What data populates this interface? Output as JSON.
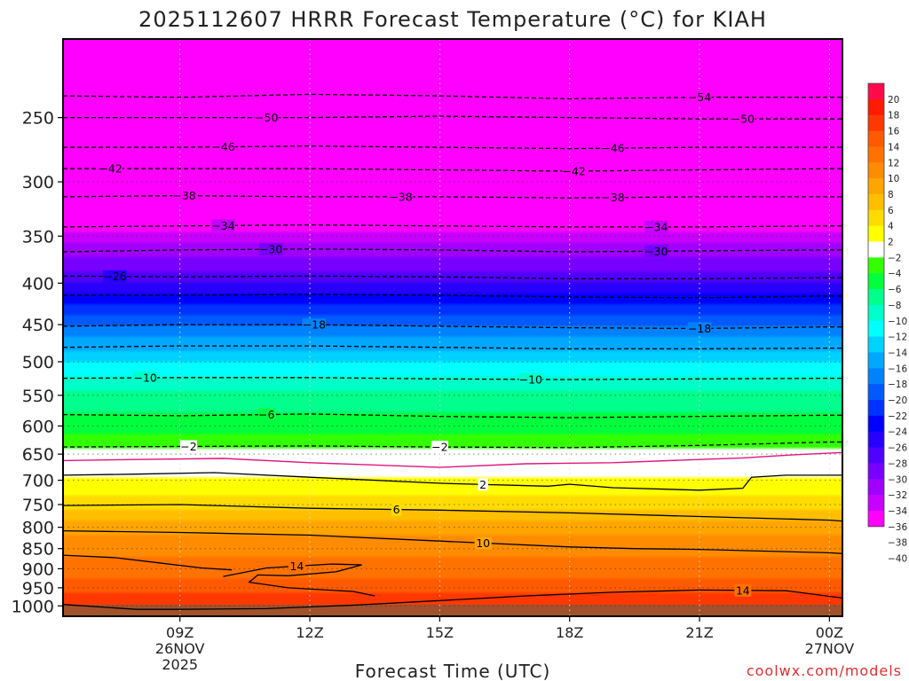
{
  "chart_data": {
    "type": "heatmap",
    "title": "2025112607 HRRR Forecast Temperature (°C) for KIAH",
    "xlabel": "Forecast Time (UTC)",
    "ylabel": "",
    "credit": "coolwx.com/models",
    "x_range_hours": [
      6.3,
      24.3
    ],
    "y_range_hpa": [
      1030,
      200
    ],
    "x_ticks": [
      {
        "hour": 9,
        "lines": [
          "09Z",
          "26NOV",
          "2025"
        ]
      },
      {
        "hour": 12,
        "lines": [
          "12Z"
        ]
      },
      {
        "hour": 15,
        "lines": [
          "15Z"
        ]
      },
      {
        "hour": 18,
        "lines": [
          "18Z"
        ]
      },
      {
        "hour": 21,
        "lines": [
          "21Z"
        ]
      },
      {
        "hour": 24,
        "lines": [
          "00Z",
          "27NOV"
        ]
      }
    ],
    "y_ticks": [
      250,
      300,
      350,
      400,
      450,
      500,
      550,
      600,
      650,
      700,
      750,
      800,
      850,
      900,
      950,
      1000
    ],
    "colorbar": {
      "labels": [
        "20",
        "18",
        "16",
        "14",
        "12",
        "10",
        "8",
        "6",
        "4",
        "2",
        "−2",
        "−4",
        "−6",
        "−8",
        "−10",
        "−12",
        "−14",
        "−16",
        "−18",
        "−20",
        "−22",
        "−24",
        "−26",
        "−28",
        "−30",
        "−32",
        "−34",
        "−36",
        "−38",
        "−40"
      ],
      "colors": [
        "#ff0a4a",
        "#ff1a00",
        "#ff3800",
        "#ff5a00",
        "#ff7200",
        "#ff8c00",
        "#ffa500",
        "#ffbe00",
        "#ffdc00",
        "#ffff00",
        "#ffffff",
        "#32ff00",
        "#00ff3c",
        "#00ff8c",
        "#00ffc8",
        "#00ffff",
        "#00d2ff",
        "#00a8ff",
        "#0082ff",
        "#005aff",
        "#0032ff",
        "#0000ff",
        "#2800ff",
        "#5000ff",
        "#7800ff",
        "#a000ff",
        "#c800ff",
        "#ff00ff"
      ],
      "bottom_color": "#ff00ff"
    },
    "profile": [
      {
        "p": 1020,
        "t": 21
      },
      {
        "p": 1000,
        "t": 18
      },
      {
        "p": 950,
        "t": 15
      },
      {
        "p": 900,
        "t": 13
      },
      {
        "p": 850,
        "t": 11.5
      },
      {
        "p": 800,
        "t": 9
      },
      {
        "p": 750,
        "t": 5
      },
      {
        "p": 700,
        "t": 2.5
      },
      {
        "p": 670,
        "t": 0
      },
      {
        "p": 650,
        "t": -1.5
      },
      {
        "p": 600,
        "t": -5
      },
      {
        "p": 550,
        "t": -7.5
      },
      {
        "p": 500,
        "t": -12
      },
      {
        "p": 450,
        "t": -18
      },
      {
        "p": 400,
        "t": -26
      },
      {
        "p": 350,
        "t": -33
      },
      {
        "p": 300,
        "t": -42
      },
      {
        "p": 250,
        "t": -50
      },
      {
        "p": 200,
        "t": -58
      }
    ],
    "isotherms": [
      {
        "temp": -54,
        "style": "dashed",
        "pts": [
          [
            6.3,
            235
          ],
          [
            9,
            236
          ],
          [
            12,
            234
          ],
          [
            15,
            235
          ],
          [
            18,
            237
          ],
          [
            21,
            236
          ],
          [
            24,
            236
          ],
          [
            24.3,
            236
          ]
        ],
        "labels": [
          {
            "text": "−54",
            "hour": 21
          }
        ]
      },
      {
        "temp": -50,
        "style": "dashed",
        "pts": [
          [
            6.3,
            250
          ],
          [
            9,
            250
          ],
          [
            12,
            250
          ],
          [
            15,
            249
          ],
          [
            18,
            250
          ],
          [
            21,
            251
          ],
          [
            24,
            251
          ],
          [
            24.3,
            251
          ]
        ],
        "labels": [
          {
            "text": "−50",
            "hour": 11
          },
          {
            "text": "−50",
            "hour": 22
          }
        ]
      },
      {
        "temp": -46,
        "style": "dashed",
        "pts": [
          [
            6.3,
            272
          ],
          [
            9,
            272
          ],
          [
            12,
            271
          ],
          [
            15,
            272
          ],
          [
            18,
            273
          ],
          [
            21,
            272
          ],
          [
            24,
            272
          ],
          [
            24.3,
            272
          ]
        ],
        "labels": [
          {
            "text": "−46",
            "hour": 10
          },
          {
            "text": "−46",
            "hour": 19
          }
        ]
      },
      {
        "temp": -42,
        "style": "dashed",
        "pts": [
          [
            6.3,
            289
          ],
          [
            9,
            289
          ],
          [
            12,
            289
          ],
          [
            15,
            290
          ],
          [
            18,
            291
          ],
          [
            21,
            290
          ],
          [
            24,
            289
          ],
          [
            24.3,
            289
          ]
        ],
        "labels": [
          {
            "text": "−42",
            "hour": 7.4
          },
          {
            "text": "−42",
            "hour": 18.1
          }
        ]
      },
      {
        "temp": -38,
        "style": "dashed",
        "pts": [
          [
            6.3,
            313
          ],
          [
            9,
            312
          ],
          [
            12,
            313
          ],
          [
            15,
            313
          ],
          [
            18,
            314
          ],
          [
            21,
            313
          ],
          [
            24,
            313
          ],
          [
            24.3,
            313
          ]
        ],
        "labels": [
          {
            "text": "−38",
            "hour": 9.1
          },
          {
            "text": "−38",
            "hour": 14.1
          },
          {
            "text": "−38",
            "hour": 19
          }
        ]
      },
      {
        "temp": -34,
        "style": "dashed",
        "pts": [
          [
            6.3,
            341
          ],
          [
            9,
            340
          ],
          [
            12,
            339
          ],
          [
            15,
            340
          ],
          [
            18,
            341
          ],
          [
            21,
            341
          ],
          [
            24,
            340
          ],
          [
            24.3,
            340
          ]
        ],
        "labels": [
          {
            "text": "−34",
            "hour": 10
          },
          {
            "text": "−34",
            "hour": 20
          }
        ]
      },
      {
        "temp": -30,
        "style": "dashed",
        "pts": [
          [
            6.3,
            366
          ],
          [
            9,
            364
          ],
          [
            12,
            363
          ],
          [
            15,
            364
          ],
          [
            18,
            366
          ],
          [
            21,
            365
          ],
          [
            24,
            364
          ],
          [
            24.3,
            364
          ]
        ],
        "labels": [
          {
            "text": "−30",
            "hour": 11.1
          },
          {
            "text": "−30",
            "hour": 20
          }
        ]
      },
      {
        "temp": -26,
        "style": "dashed",
        "pts": [
          [
            6.3,
            392
          ],
          [
            9,
            393
          ],
          [
            12,
            392
          ],
          [
            15,
            393
          ],
          [
            18,
            395
          ],
          [
            21,
            395
          ],
          [
            24,
            394
          ],
          [
            24.3,
            394
          ]
        ],
        "labels": [
          {
            "text": "−26",
            "hour": 7.5
          }
        ]
      },
      {
        "temp": -22,
        "style": "dashed",
        "pts": [
          [
            6.3,
            414
          ],
          [
            9,
            414
          ],
          [
            12,
            413
          ],
          [
            15,
            414
          ],
          [
            18,
            416
          ],
          [
            21,
            417
          ],
          [
            24,
            415
          ],
          [
            24.3,
            415
          ]
        ],
        "labels": []
      },
      {
        "temp": -18,
        "style": "dashed",
        "pts": [
          [
            6.3,
            452
          ],
          [
            9,
            450
          ],
          [
            12,
            450
          ],
          [
            15,
            452
          ],
          [
            18,
            454
          ],
          [
            21,
            455
          ],
          [
            24,
            453
          ],
          [
            24.3,
            453
          ]
        ],
        "labels": [
          {
            "text": "−18",
            "hour": 12.1
          },
          {
            "text": "−18",
            "hour": 21
          }
        ]
      },
      {
        "temp": -14,
        "style": "dashed",
        "pts": [
          [
            6.3,
            480
          ],
          [
            9,
            478
          ],
          [
            12,
            478
          ],
          [
            15,
            480
          ],
          [
            18,
            482
          ],
          [
            21,
            482
          ],
          [
            24,
            481
          ],
          [
            24.3,
            481
          ]
        ],
        "labels": []
      },
      {
        "temp": -10,
        "style": "dashed",
        "pts": [
          [
            6.3,
            524
          ],
          [
            9,
            523
          ],
          [
            12,
            523
          ],
          [
            15,
            525
          ],
          [
            18,
            526
          ],
          [
            21,
            525
          ],
          [
            24,
            524
          ],
          [
            24.3,
            524
          ]
        ],
        "labels": [
          {
            "text": "−10",
            "hour": 8.2
          },
          {
            "text": "−10",
            "hour": 17.1
          }
        ]
      },
      {
        "temp": -6,
        "style": "dashed",
        "pts": [
          [
            6.3,
            581
          ],
          [
            9,
            583
          ],
          [
            12,
            580
          ],
          [
            15,
            584
          ],
          [
            18,
            586
          ],
          [
            21,
            584
          ],
          [
            24,
            582
          ],
          [
            24.3,
            582
          ]
        ],
        "labels": [
          {
            "text": "−6",
            "hour": 11
          }
        ]
      },
      {
        "temp": -2,
        "style": "dashed",
        "pts": [
          [
            6.3,
            637
          ],
          [
            9,
            636
          ],
          [
            12,
            635
          ],
          [
            15,
            637
          ],
          [
            18,
            638
          ],
          [
            21,
            634
          ],
          [
            24,
            628
          ],
          [
            24.3,
            628
          ]
        ],
        "labels": [
          {
            "text": "−2",
            "hour": 9.2
          },
          {
            "text": "−2",
            "hour": 15
          }
        ]
      },
      {
        "temp": 0,
        "style": "magenta",
        "pts": [
          [
            6.3,
            662
          ],
          [
            8,
            660
          ],
          [
            10,
            658
          ],
          [
            12,
            666
          ],
          [
            15,
            675
          ],
          [
            17,
            668
          ],
          [
            19,
            666
          ],
          [
            21,
            660
          ],
          [
            22,
            657
          ],
          [
            23,
            652
          ],
          [
            24.3,
            647
          ]
        ],
        "labels": []
      },
      {
        "temp": 2,
        "style": "solid",
        "pts": [
          [
            6.3,
            690
          ],
          [
            8,
            688
          ],
          [
            9.8,
            685
          ],
          [
            12,
            694
          ],
          [
            15,
            706
          ],
          [
            17.5,
            712
          ],
          [
            18,
            708
          ],
          [
            19,
            715
          ],
          [
            21,
            720
          ],
          [
            22,
            716
          ],
          [
            22.2,
            694
          ],
          [
            23,
            690
          ],
          [
            24.3,
            690
          ]
        ],
        "labels": [
          {
            "text": "2",
            "hour": 16
          }
        ]
      },
      {
        "temp": 6,
        "style": "solid",
        "pts": [
          [
            6.3,
            752
          ],
          [
            9,
            750
          ],
          [
            12,
            758
          ],
          [
            15,
            762
          ],
          [
            18,
            768
          ],
          [
            21,
            776
          ],
          [
            24,
            784
          ],
          [
            24.3,
            786
          ]
        ],
        "labels": [
          {
            "text": "6",
            "hour": 14
          }
        ]
      },
      {
        "temp": 10,
        "style": "solid",
        "pts": [
          [
            6.3,
            808
          ],
          [
            9,
            812
          ],
          [
            12,
            818
          ],
          [
            15,
            832
          ],
          [
            18,
            846
          ],
          [
            19.5,
            850
          ],
          [
            21,
            852
          ],
          [
            24,
            860
          ],
          [
            24.3,
            862
          ]
        ],
        "labels": [
          {
            "text": "10",
            "hour": 16
          }
        ]
      },
      {
        "temp": 14,
        "style": "solid",
        "pts": [
          [
            6.3,
            996
          ],
          [
            8,
            1010
          ],
          [
            9,
            1010
          ],
          [
            11,
            1008
          ],
          [
            13,
            998
          ],
          [
            15,
            985
          ],
          [
            17,
            972
          ],
          [
            19,
            962
          ],
          [
            21,
            956
          ],
          [
            23,
            958
          ],
          [
            24.3,
            978
          ]
        ],
        "labels": [
          {
            "text": "14",
            "hour": 22
          }
        ]
      },
      {
        "temp": 14,
        "style": "solid",
        "pts": [
          [
            10,
            920
          ],
          [
            11,
            898
          ],
          [
            12.5,
            888
          ],
          [
            13.2,
            890
          ],
          [
            12.6,
            908
          ],
          [
            11.5,
            918
          ],
          [
            10.8,
            916
          ],
          [
            10.6,
            935
          ],
          [
            11.5,
            950
          ],
          [
            13,
            960
          ],
          [
            13.5,
            972
          ]
        ],
        "labels": [
          {
            "text": "14",
            "hour": 11.7
          }
        ]
      },
      {
        "temp": 14,
        "style": "solid",
        "pts": [
          [
            6.3,
            866
          ],
          [
            7.5,
            872
          ],
          [
            8.5,
            885
          ],
          [
            9.5,
            898
          ],
          [
            10.2,
            903
          ]
        ],
        "labels": []
      }
    ]
  }
}
